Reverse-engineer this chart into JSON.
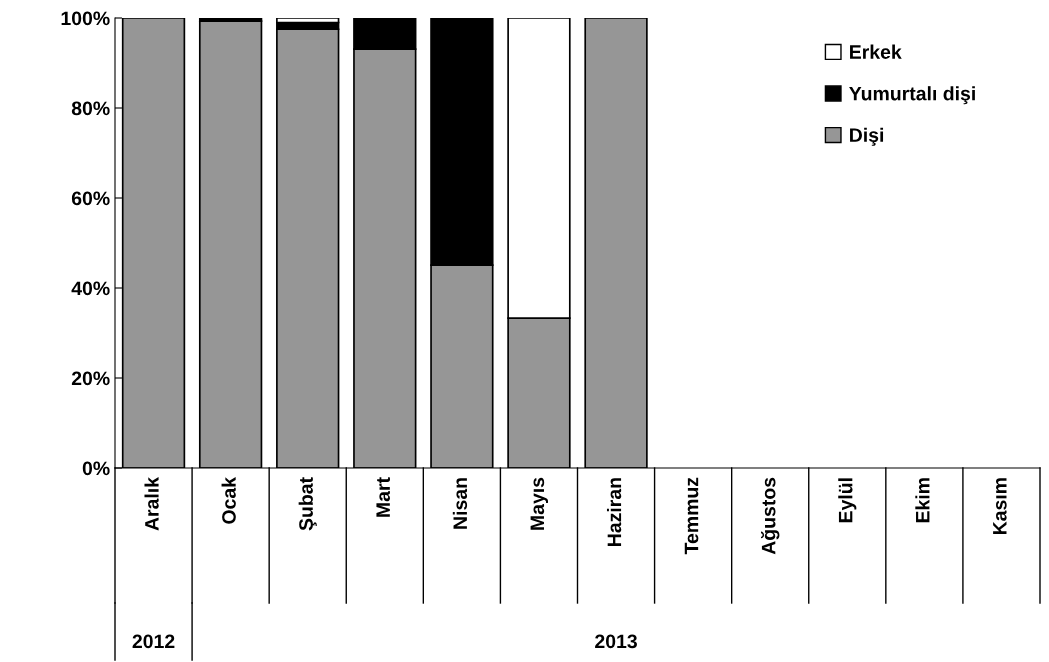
{
  "chart_data": {
    "type": "bar",
    "stacked": true,
    "categories": [
      "Aralık",
      "Ocak",
      "Şubat",
      "Mart",
      "Nisan",
      "Mayıs",
      "Haziran",
      "Temmuz",
      "Ağustos",
      "Eylül",
      "Ekim",
      "Kasım"
    ],
    "series": [
      {
        "name": "Dişi",
        "color": "#969696",
        "values": [
          100,
          99.3,
          97.5,
          93.1,
          45.1,
          33.3,
          100,
          null,
          null,
          null,
          null,
          null
        ]
      },
      {
        "name": "Yumurtalı dişi",
        "color": "#000000",
        "values": [
          0,
          0.7,
          1.5,
          6.9,
          54.9,
          0,
          0,
          null,
          null,
          null,
          null,
          null
        ]
      },
      {
        "name": "Erkek",
        "color": "#ffffff",
        "values": [
          0,
          0,
          1.0,
          0,
          0,
          66.7,
          0,
          null,
          null,
          null,
          null,
          null
        ]
      }
    ],
    "ylim": [
      0,
      100
    ],
    "yticks": [
      {
        "value": 0,
        "label": "0%"
      },
      {
        "value": 20,
        "label": "20%"
      },
      {
        "value": 40,
        "label": "40%"
      },
      {
        "value": 60,
        "label": "60%"
      },
      {
        "value": 80,
        "label": "80%"
      },
      {
        "value": 100,
        "label": "100%"
      }
    ],
    "grid": false,
    "legend": "top right",
    "annotations": [
      "2012",
      "2013"
    ]
  }
}
